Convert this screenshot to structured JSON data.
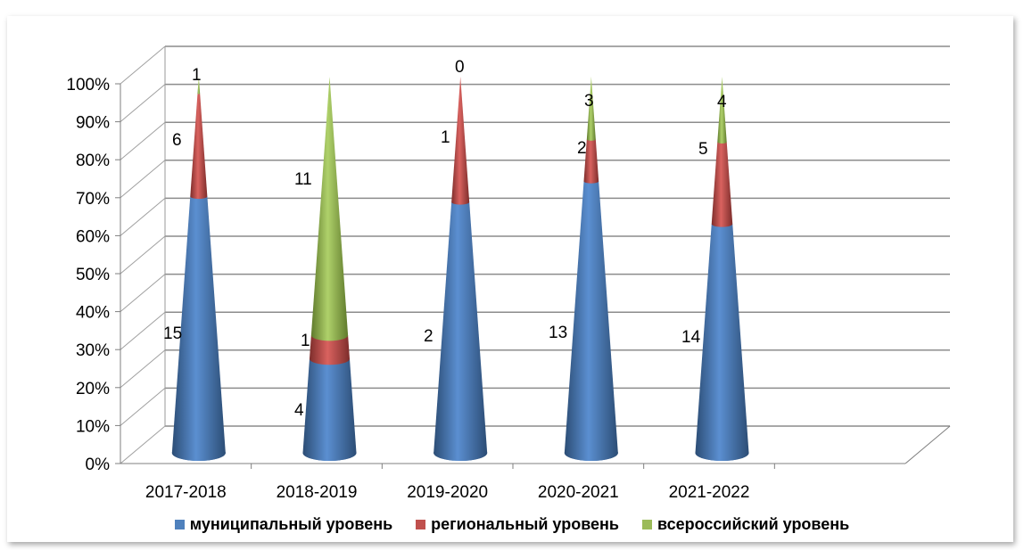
{
  "chart_data": {
    "type": "bar",
    "subtype": "stacked-100-percent-cone-3d",
    "title": "",
    "categories": [
      "2017-2018",
      "2018-2019",
      "2019-2020",
      "2020-2021",
      "2021-2022"
    ],
    "series": [
      {
        "name": "муниципальный уровень",
        "color": "#4f81bd",
        "values": [
          15,
          4,
          2,
          13,
          14
        ]
      },
      {
        "name": "региональный уровень",
        "color": "#c0504d",
        "values": [
          6,
          1,
          1,
          2,
          5
        ]
      },
      {
        "name": "всероссийский уровень",
        "color": "#9bbb59",
        "values": [
          1,
          11,
          0,
          3,
          4
        ]
      }
    ],
    "y_ticks": [
      "0%",
      "10%",
      "20%",
      "30%",
      "40%",
      "50%",
      "60%",
      "70%",
      "80%",
      "90%",
      "100%"
    ],
    "ylim": [
      0,
      100
    ],
    "grid": true,
    "legend_position": "bottom"
  }
}
